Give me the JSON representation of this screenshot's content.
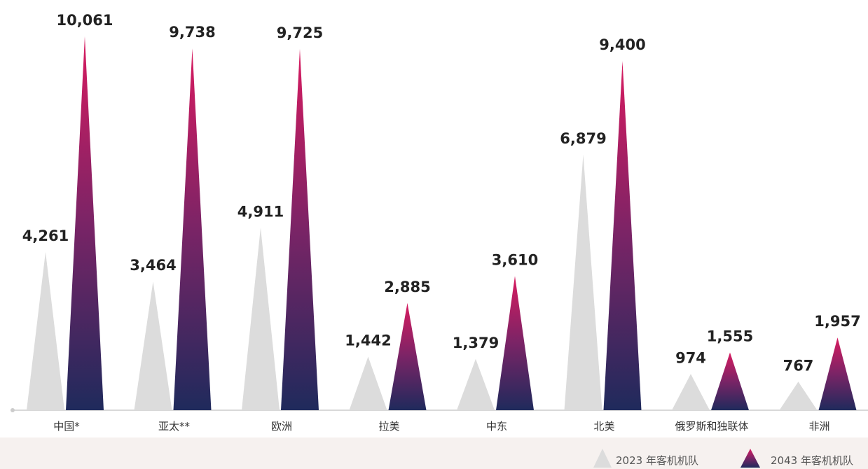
{
  "chart_data": {
    "type": "bar",
    "categories": [
      "中国*",
      "亚太**",
      "欧洲",
      "拉美",
      "中东",
      "北美",
      "俄罗斯和独联体",
      "非洲"
    ],
    "series": [
      {
        "name": "2023 年客机机队",
        "values": [
          4261,
          3464,
          4911,
          1442,
          1379,
          6879,
          974,
          767
        ],
        "labels": [
          "4,261",
          "3,464",
          "4,911",
          "1,442",
          "1,379",
          "6,879",
          "974",
          "767"
        ]
      },
      {
        "name": "2043 年客机机队",
        "values": [
          10061,
          9738,
          9725,
          2885,
          3610,
          9400,
          1555,
          1957
        ],
        "labels": [
          "10,061",
          "9,738",
          "9,725",
          "2,885",
          "3,610",
          "9,400",
          "1,555",
          "1,957"
        ]
      }
    ],
    "legend": "bottom-right",
    "colors": {
      "s2023": "#dcdcdc",
      "s2043_top": "#d81b60",
      "s2043_bottom": "#1f2a5c",
      "axis": "#cccccc"
    }
  }
}
